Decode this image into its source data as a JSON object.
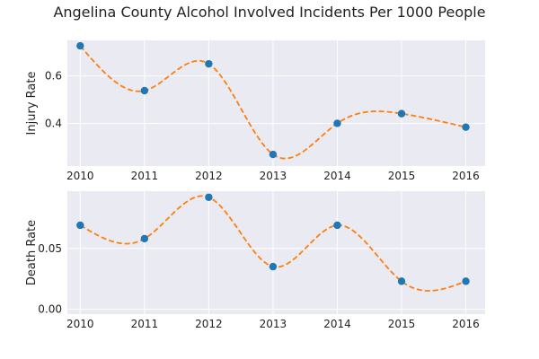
{
  "title": "Angelina County Alcohol Involved Incidents Per 1000 People",
  "colors": {
    "plot_bg": "#eaeaf2",
    "grid": "#ffffff",
    "marker": "#1f77b4",
    "curve": "#ff7f0e"
  },
  "chart_data": [
    {
      "type": "line",
      "x": [
        2010,
        2011,
        2012,
        2013,
        2014,
        2015,
        2016
      ],
      "y": [
        0.727,
        0.538,
        0.651,
        0.269,
        0.4,
        0.441,
        0.384
      ],
      "xlabel": "",
      "ylabel": "Injury Rate",
      "xlim": [
        2009.8,
        2016.3
      ],
      "ylim": [
        0.22,
        0.75
      ],
      "xticks": [
        2010,
        2011,
        2012,
        2013,
        2014,
        2015,
        2016
      ],
      "yticks": [
        0.4,
        0.6
      ],
      "ytick_labels": [
        "0.4",
        "0.6"
      ],
      "markers": "circle",
      "curve_style": "dashed smooth",
      "grid": true
    },
    {
      "type": "line",
      "x": [
        2010,
        2011,
        2012,
        2013,
        2014,
        2015,
        2016
      ],
      "y": [
        0.069,
        0.058,
        0.092,
        0.035,
        0.069,
        0.023,
        0.023
      ],
      "xlabel": "",
      "ylabel": "Death Rate",
      "xlim": [
        2009.8,
        2016.3
      ],
      "ylim": [
        -0.004,
        0.097
      ],
      "xticks": [
        2010,
        2011,
        2012,
        2013,
        2014,
        2015,
        2016
      ],
      "yticks": [
        0.0,
        0.05
      ],
      "ytick_labels": [
        "0.00",
        "0.05"
      ],
      "markers": "circle",
      "curve_style": "dashed smooth",
      "grid": true
    }
  ]
}
